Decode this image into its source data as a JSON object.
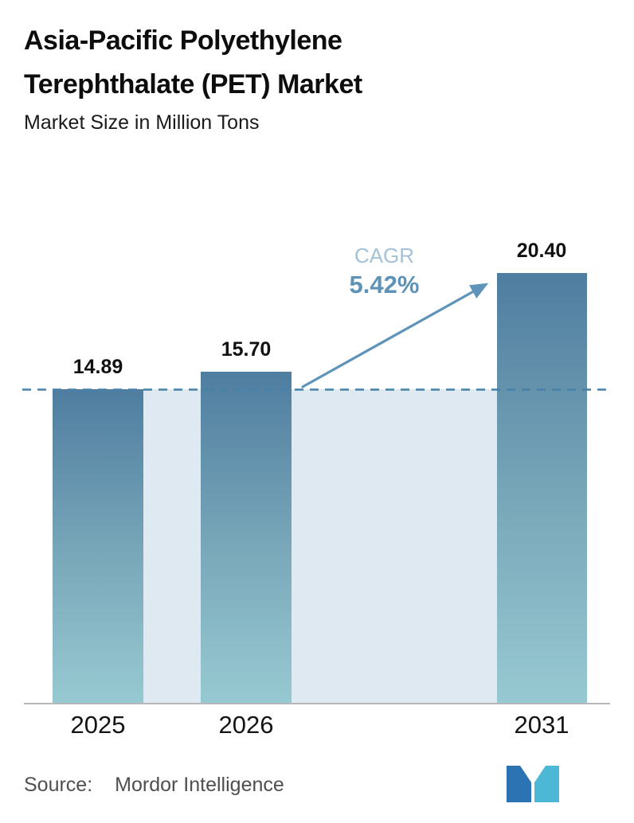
{
  "title": {
    "line1": "Asia-Pacific Polyethylene",
    "line2": "Terephthalate (PET) Market",
    "subtitle": "Market Size in Million Tons"
  },
  "chart_data": {
    "type": "bar",
    "title": "Asia-Pacific Polyethylene Terephthalate (PET) Market",
    "subtitle": "Market Size in Million Tons",
    "unit": "Million Tons",
    "categories": [
      "2025",
      "2026",
      "2031"
    ],
    "values": [
      14.89,
      15.7,
      20.4
    ],
    "value_labels": [
      "14.89",
      "15.70",
      "20.40"
    ],
    "ylim": [
      0,
      20.4
    ],
    "reference_line_value": 14.89,
    "annotation": {
      "label": "CAGR",
      "value": "5.42%"
    },
    "grid": false,
    "legend": "none",
    "colors": {
      "bar_gradient_top": "#4f7da0",
      "bar_gradient_bottom": "#97c9d2",
      "reference_band": "#dfe9f2",
      "dashed_line": "#4781a8",
      "arrow": "#5e94b9",
      "cagr_label": "#a3c2d8",
      "cagr_value": "#5e93b8"
    }
  },
  "footer": {
    "source_label": "Source:",
    "source_value": "Mordor Intelligence"
  }
}
